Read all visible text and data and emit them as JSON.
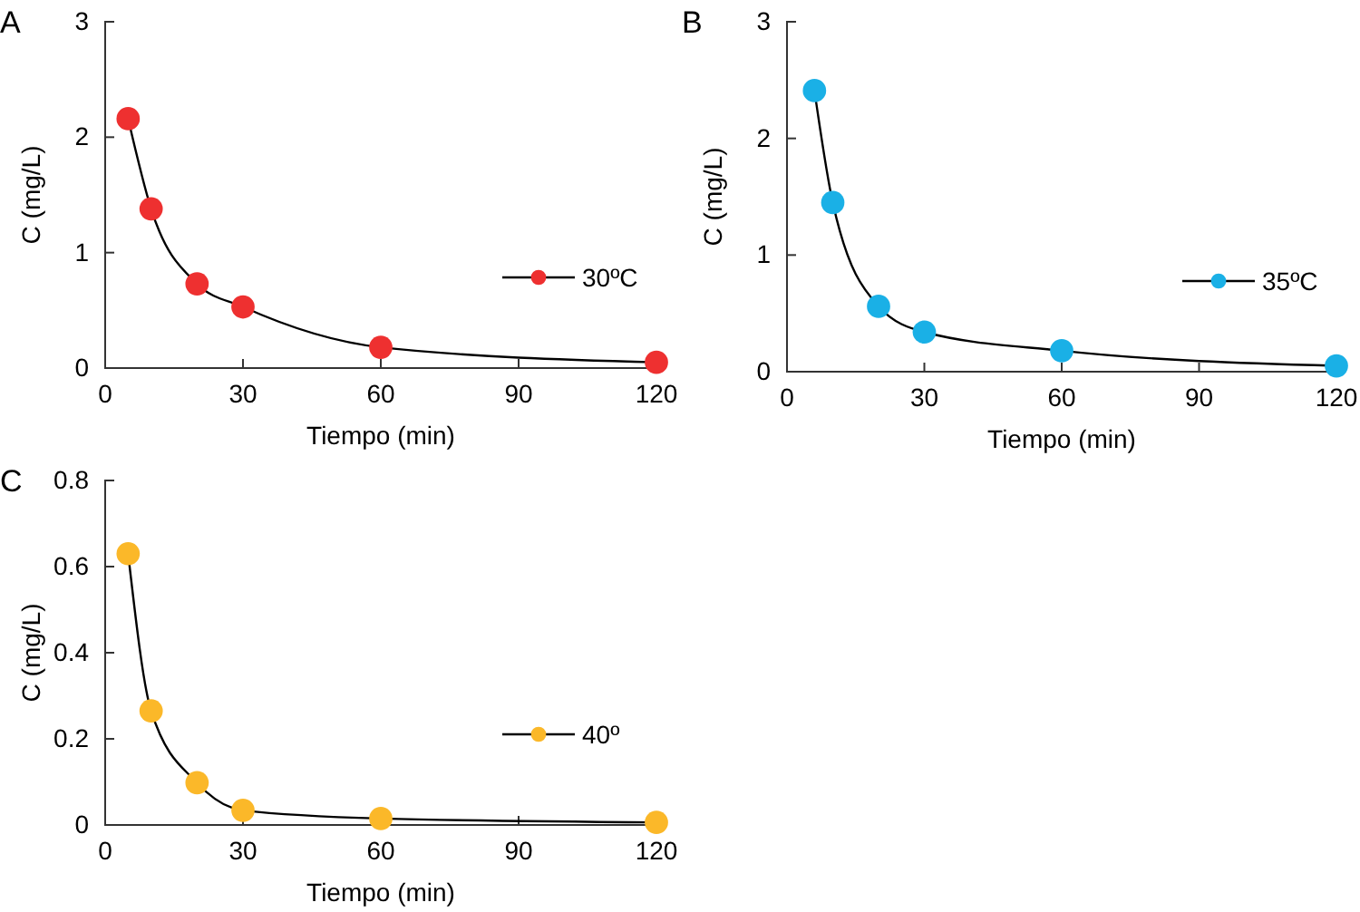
{
  "chart_data": [
    {
      "type": "line",
      "title": "A",
      "xlabel": "Tiempo (min)",
      "ylabel": "C (mg/L)",
      "x": [
        5,
        10,
        20,
        30,
        60,
        120
      ],
      "xlim": [
        0,
        120
      ],
      "xticks": [
        0,
        30,
        60,
        90,
        120
      ],
      "ylim": [
        0,
        3
      ],
      "yticks": [
        0,
        1,
        2,
        3
      ],
      "marker": "circle",
      "legend": "right",
      "grid": false,
      "series": [
        {
          "name": "30ºC",
          "color": "#ee3030",
          "values": [
            2.16,
            1.38,
            0.73,
            0.53,
            0.18,
            0.05
          ]
        }
      ]
    },
    {
      "type": "line",
      "title": "B",
      "xlabel": "Tiempo (min)",
      "ylabel": "C (mg/L)",
      "x": [
        6,
        10,
        20,
        30,
        60,
        120
      ],
      "xlim": [
        0,
        120
      ],
      "xticks": [
        0,
        30,
        60,
        90,
        120
      ],
      "ylim": [
        0,
        3
      ],
      "yticks": [
        0,
        1,
        2,
        3
      ],
      "marker": "circle",
      "legend": "right",
      "grid": false,
      "series": [
        {
          "name": "35ºC",
          "color": "#1ab0e6",
          "values": [
            2.41,
            1.45,
            0.56,
            0.34,
            0.18,
            0.05
          ]
        }
      ]
    },
    {
      "type": "line",
      "title": "C",
      "xlabel": "Tiempo (min)",
      "ylabel": "C (mg/L)",
      "x": [
        5,
        10,
        20,
        30,
        60,
        120
      ],
      "xlim": [
        0,
        120
      ],
      "xticks": [
        0,
        30,
        60,
        90,
        120
      ],
      "ylim": [
        0,
        0.8
      ],
      "yticks": [
        0,
        0.2,
        0.4,
        0.6,
        0.8
      ],
      "marker": "circle",
      "legend": "right",
      "grid": false,
      "series": [
        {
          "name": "40º",
          "color": "#fbb829",
          "values": [
            0.63,
            0.265,
            0.098,
            0.034,
            0.015,
            0.006
          ]
        }
      ]
    }
  ]
}
